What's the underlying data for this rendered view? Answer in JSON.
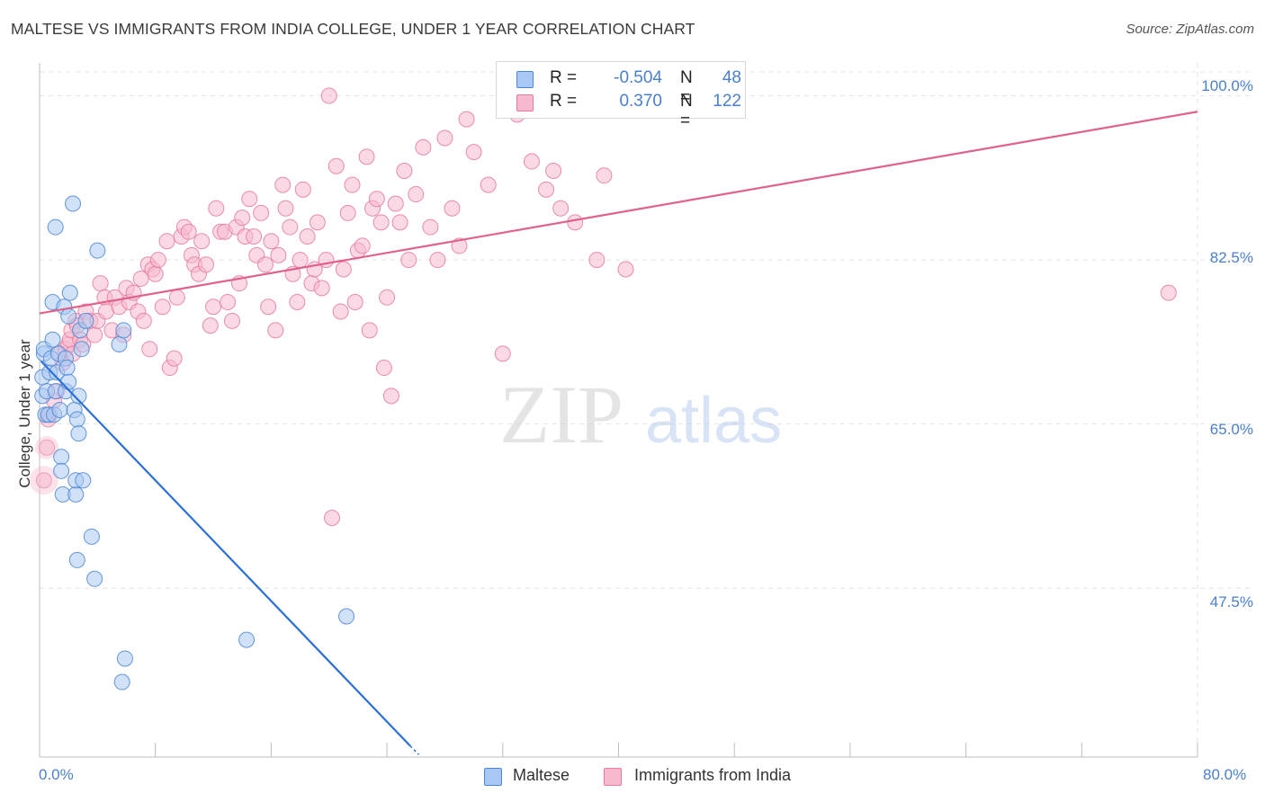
{
  "title": "MALTESE VS IMMIGRANTS FROM INDIA COLLEGE, UNDER 1 YEAR CORRELATION CHART",
  "source": "Source: ZipAtlas.com",
  "watermark": {
    "zip": "ZIP",
    "atlas": "atlas"
  },
  "legend": {
    "r_label": "R =",
    "n_label": "N =",
    "rows": [
      {
        "r": "-0.504",
        "n": "48",
        "color": "#a9c8f3"
      },
      {
        "r": "0.370",
        "n": "122",
        "color": "#f7b9cd"
      }
    ]
  },
  "bottom_legend": [
    {
      "label": "Maltese",
      "color": "#a9c8f3"
    },
    {
      "label": "Immigrants from India",
      "color": "#f7b9cd"
    }
  ],
  "colors": {
    "blue_fill": "#a9c8f3",
    "blue_stroke": "#4b86d6",
    "blue_line": "#2b6fd6",
    "pink_fill": "#f7b9cd",
    "pink_stroke": "#e8799d",
    "pink_line": "#e0618c",
    "tick_text": "#4a7fcf",
    "grid": "#e3e3e3"
  },
  "chart_data": {
    "type": "scatter",
    "title": "MALTESE VS IMMIGRANTS FROM INDIA COLLEGE, UNDER 1 YEAR CORRELATION CHART",
    "xlabel": "",
    "ylabel": "College, Under 1 year",
    "xlim": [
      0,
      80
    ],
    "ylim": [
      29.5,
      103.5
    ],
    "x_tick_labels": [
      "0.0%",
      "80.0%"
    ],
    "y_ticks": [
      47.5,
      65.0,
      82.5,
      100.0
    ],
    "y_tick_labels": [
      "47.5%",
      "65.0%",
      "82.5%",
      "100.0%"
    ],
    "grid": true,
    "legend_position": "top-center",
    "series": [
      {
        "name": "Maltese",
        "R": -0.504,
        "N": 48,
        "trend": {
          "x0": 0.1,
          "y0": 71.7,
          "x1": 25.6,
          "y1": 30.7
        },
        "points": [
          [
            0.2,
            70.0
          ],
          [
            0.2,
            68.0
          ],
          [
            0.3,
            72.5
          ],
          [
            0.3,
            73.0
          ],
          [
            0.4,
            66.0
          ],
          [
            0.5,
            68.5
          ],
          [
            0.6,
            66.0
          ],
          [
            0.7,
            70.5
          ],
          [
            0.8,
            72.0
          ],
          [
            0.9,
            74.0
          ],
          [
            0.9,
            78.0
          ],
          [
            1.0,
            66.0
          ],
          [
            1.1,
            86.0
          ],
          [
            1.1,
            68.5
          ],
          [
            1.2,
            70.5
          ],
          [
            1.3,
            72.5
          ],
          [
            1.4,
            66.5
          ],
          [
            1.5,
            61.5
          ],
          [
            1.5,
            60.0
          ],
          [
            1.6,
            57.5
          ],
          [
            1.7,
            77.5
          ],
          [
            1.8,
            72.0
          ],
          [
            1.8,
            68.5
          ],
          [
            1.9,
            71.0
          ],
          [
            2.0,
            76.5
          ],
          [
            2.0,
            69.5
          ],
          [
            2.1,
            79.0
          ],
          [
            2.3,
            88.5
          ],
          [
            2.4,
            66.5
          ],
          [
            2.5,
            57.5
          ],
          [
            2.5,
            59.0
          ],
          [
            2.6,
            50.5
          ],
          [
            2.6,
            65.5
          ],
          [
            2.7,
            64.0
          ],
          [
            2.7,
            68.0
          ],
          [
            2.8,
            75.0
          ],
          [
            2.9,
            73.0
          ],
          [
            3.0,
            59.0
          ],
          [
            3.2,
            76.0
          ],
          [
            3.6,
            53.0
          ],
          [
            3.8,
            48.5
          ],
          [
            4.0,
            83.5
          ],
          [
            5.5,
            73.5
          ],
          [
            5.8,
            75.0
          ],
          [
            5.9,
            40.0
          ],
          [
            5.7,
            37.5
          ],
          [
            14.3,
            42.0
          ],
          [
            21.2,
            44.5
          ]
        ]
      },
      {
        "name": "Immigrants from India",
        "R": 0.37,
        "N": 122,
        "trend": {
          "x0": 0,
          "y0": 76.8,
          "x1": 80,
          "y1": 98.3
        },
        "points": [
          [
            0.3,
            59.0
          ],
          [
            0.5,
            62.5
          ],
          [
            0.6,
            65.5
          ],
          [
            0.7,
            66.0
          ],
          [
            1.0,
            67.5
          ],
          [
            1.2,
            68.5
          ],
          [
            1.4,
            72.5
          ],
          [
            1.6,
            71.5
          ],
          [
            1.8,
            73.0
          ],
          [
            2.0,
            73.5
          ],
          [
            2.1,
            74.0
          ],
          [
            2.2,
            75.0
          ],
          [
            2.3,
            72.5
          ],
          [
            2.5,
            76.0
          ],
          [
            2.6,
            75.5
          ],
          [
            2.8,
            74.0
          ],
          [
            3.0,
            73.5
          ],
          [
            3.2,
            77.0
          ],
          [
            3.5,
            76.0
          ],
          [
            3.8,
            74.5
          ],
          [
            4.0,
            76.0
          ],
          [
            4.2,
            80.0
          ],
          [
            4.5,
            78.5
          ],
          [
            4.6,
            77.0
          ],
          [
            5.0,
            75.0
          ],
          [
            5.2,
            78.5
          ],
          [
            5.5,
            77.5
          ],
          [
            5.8,
            74.5
          ],
          [
            6.0,
            79.5
          ],
          [
            6.2,
            78.0
          ],
          [
            6.5,
            79.0
          ],
          [
            6.8,
            77.0
          ],
          [
            7.0,
            80.5
          ],
          [
            7.2,
            76.0
          ],
          [
            7.5,
            82.0
          ],
          [
            7.6,
            73.0
          ],
          [
            7.8,
            81.5
          ],
          [
            8.0,
            81.0
          ],
          [
            8.2,
            82.5
          ],
          [
            8.5,
            77.5
          ],
          [
            8.8,
            84.5
          ],
          [
            9.0,
            71.0
          ],
          [
            9.3,
            72.0
          ],
          [
            9.5,
            78.5
          ],
          [
            9.8,
            85.0
          ],
          [
            10.0,
            86.0
          ],
          [
            10.3,
            85.5
          ],
          [
            10.5,
            83.0
          ],
          [
            10.7,
            82.0
          ],
          [
            11.0,
            81.0
          ],
          [
            11.2,
            84.5
          ],
          [
            11.5,
            82.0
          ],
          [
            11.8,
            75.5
          ],
          [
            12.0,
            77.5
          ],
          [
            12.2,
            88.0
          ],
          [
            12.5,
            85.5
          ],
          [
            12.8,
            85.5
          ],
          [
            13.0,
            78.0
          ],
          [
            13.3,
            76.0
          ],
          [
            13.6,
            86.0
          ],
          [
            13.8,
            80.0
          ],
          [
            14.0,
            87.0
          ],
          [
            14.2,
            85.0
          ],
          [
            14.5,
            89.0
          ],
          [
            14.8,
            85.0
          ],
          [
            15.0,
            83.0
          ],
          [
            15.3,
            87.5
          ],
          [
            15.6,
            82.0
          ],
          [
            15.8,
            77.5
          ],
          [
            16.0,
            84.5
          ],
          [
            16.3,
            75.0
          ],
          [
            16.5,
            83.0
          ],
          [
            16.8,
            90.5
          ],
          [
            17.0,
            88.0
          ],
          [
            17.3,
            86.0
          ],
          [
            17.5,
            81.0
          ],
          [
            17.8,
            78.0
          ],
          [
            18.0,
            82.5
          ],
          [
            18.2,
            90.0
          ],
          [
            18.5,
            85.0
          ],
          [
            18.8,
            80.0
          ],
          [
            19.0,
            81.5
          ],
          [
            19.2,
            86.5
          ],
          [
            19.5,
            79.5
          ],
          [
            19.8,
            82.5
          ],
          [
            20.0,
            100.0
          ],
          [
            20.2,
            55.0
          ],
          [
            20.5,
            92.5
          ],
          [
            20.8,
            77.0
          ],
          [
            21.0,
            81.5
          ],
          [
            21.3,
            87.5
          ],
          [
            21.6,
            90.5
          ],
          [
            21.8,
            78.0
          ],
          [
            22.0,
            83.5
          ],
          [
            22.3,
            84.0
          ],
          [
            22.6,
            93.5
          ],
          [
            22.8,
            75.0
          ],
          [
            23.0,
            88.0
          ],
          [
            23.3,
            89.0
          ],
          [
            23.6,
            86.5
          ],
          [
            23.8,
            71.0
          ],
          [
            24.0,
            78.5
          ],
          [
            24.3,
            68.0
          ],
          [
            24.6,
            88.5
          ],
          [
            24.9,
            86.5
          ],
          [
            25.2,
            92.0
          ],
          [
            25.5,
            82.5
          ],
          [
            26.0,
            89.5
          ],
          [
            26.5,
            94.5
          ],
          [
            27.0,
            86.0
          ],
          [
            27.5,
            82.5
          ],
          [
            28.0,
            95.5
          ],
          [
            28.5,
            88.0
          ],
          [
            29.0,
            84.0
          ],
          [
            29.5,
            97.5
          ],
          [
            30.0,
            94.0
          ],
          [
            31.0,
            90.5
          ],
          [
            32.0,
            72.5
          ],
          [
            33.0,
            98.0
          ],
          [
            34.0,
            93.0
          ],
          [
            35.0,
            90.0
          ],
          [
            35.5,
            92.0
          ],
          [
            36.0,
            88.0
          ],
          [
            37.0,
            86.5
          ],
          [
            38.5,
            82.5
          ],
          [
            39.0,
            91.5
          ],
          [
            40.5,
            81.5
          ],
          [
            78.0,
            79.0
          ]
        ]
      }
    ]
  }
}
